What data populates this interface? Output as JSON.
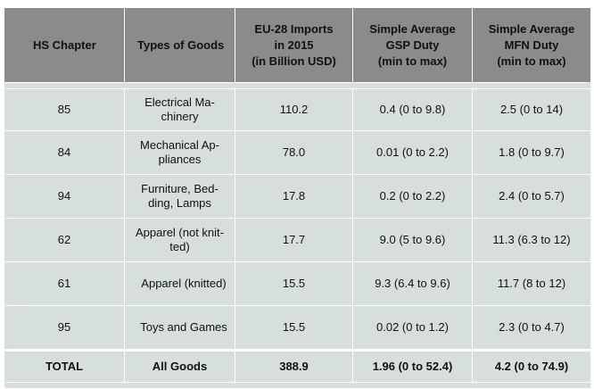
{
  "table": {
    "headers": [
      "HS Chapter",
      "Types of Goods",
      "EU-28 Imports in 2015 (in Billion USD)",
      "Simple Average GSP Duty (min to max)",
      "Simple Average MFN Duty (min to max)"
    ],
    "header_lines": [
      [
        "HS Chapter"
      ],
      [
        "Types of Goods"
      ],
      [
        "EU-28 Imports",
        "in 2015",
        "(in Billion USD)"
      ],
      [
        "Simple Average",
        "GSP Duty",
        "(min to max)"
      ],
      [
        "Simple Average",
        "MFN Duty",
        "(min to max)"
      ]
    ],
    "rows": [
      {
        "chapter": "85",
        "goods": "Electrical Ma-chinery",
        "imports": "110.2",
        "gsp": "0.4 (0 to 9.8)",
        "mfn": "2.5 (0 to 14)"
      },
      {
        "chapter": "84",
        "goods": "Mechanical Ap-pliances",
        "imports": "78.0",
        "gsp": "0.01 (0 to 2.2)",
        "mfn": "1.8 (0 to 9.7)"
      },
      {
        "chapter": "94",
        "goods": "Furniture, Bed-ding, Lamps",
        "imports": "17.8",
        "gsp": "0.2 (0 to 2.2)",
        "mfn": "2.4 (0 to 5.7)"
      },
      {
        "chapter": "62",
        "goods": "Apparel (not knit-ted)",
        "imports": "17.7",
        "gsp": "9.0 (5 to 9.6)",
        "mfn": "11.3 (6.3 to 12)"
      },
      {
        "chapter": "61",
        "goods": "Apparel (knitted)",
        "imports": "15.5",
        "gsp": "9.3 (6.4 to 9.6)",
        "mfn": "11.7 (8 to 12)"
      },
      {
        "chapter": "95",
        "goods": "Toys and Games",
        "imports": "15.5",
        "gsp": "0.02 (0 to 1.2)",
        "mfn": "2.3 (0 to 4.7)"
      }
    ],
    "total": {
      "chapter": "TOTAL",
      "goods": "All Goods",
      "imports": "388.9",
      "gsp": "1.96 (0 to 52.4)",
      "mfn": "4.2 (0 to 74.9)"
    }
  },
  "colors": {
    "header_bg": "#8b8b8b",
    "row_bg": "#d6dfdb",
    "grid": "#ffffff"
  }
}
